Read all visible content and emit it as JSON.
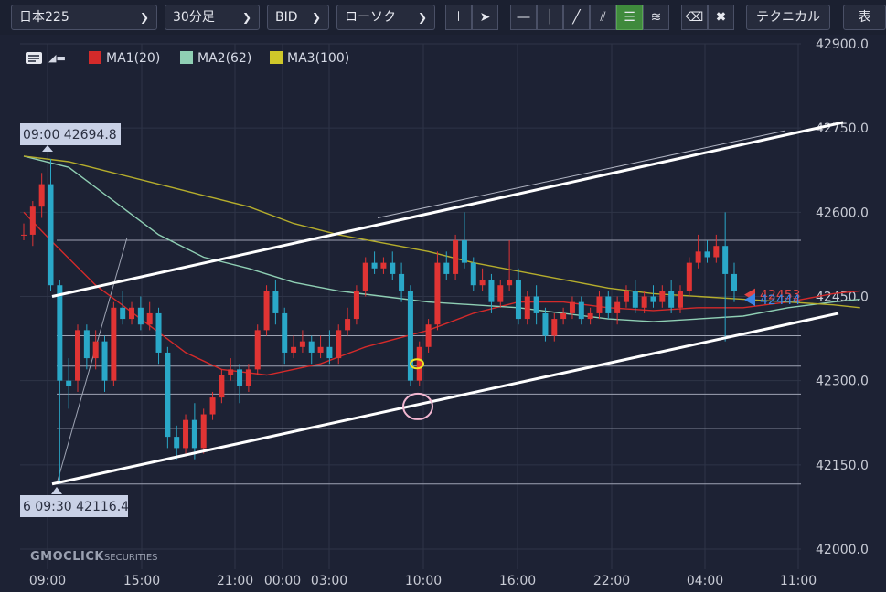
{
  "toolbar": {
    "symbol": "日本225",
    "interval": "30分足",
    "price_type": "BID",
    "chart_style": "ローソク",
    "technical_label": "テクニカル",
    "display_label": "表示",
    "tool_icons": [
      "crosshair-icon",
      "pointer-icon",
      "horizontal-line-icon",
      "vertical-line-icon",
      "trend-line-icon",
      "parallel-channel-icon",
      "fibonacci-retracement-icon",
      "fibonacci-fan-icon",
      "eraser-icon",
      "erase-all-icon"
    ]
  },
  "legend": {
    "ma1": "MA1(20)",
    "ma2": "MA2(62)",
    "ma3": "MA3(100)"
  },
  "logo": {
    "main": "GMOCLICK",
    "sub": "SECURITIES"
  },
  "annotations": {
    "high_label": "09:00 42694.8",
    "low_label": "6 09:30 42116.4"
  },
  "chart_data": {
    "type": "candlestick",
    "ylim": [
      42000,
      42900
    ],
    "y_ticks": [
      "42000.0",
      "42150.0",
      "42300.0",
      "42450.0",
      "42600.0",
      "42750.0",
      "42900.0"
    ],
    "x_ticks": [
      "09:00",
      "15:00",
      "21:00",
      "00:00",
      "03:00",
      "10:00",
      "16:00",
      "22:00",
      "04:00",
      "11:00"
    ],
    "bullish_color": "#e03434",
    "bearish_color": "#2aa8c8",
    "series": [
      {
        "name": "MA1(20)",
        "color": "#d42a2a",
        "points": [
          [
            0,
            42600
          ],
          [
            3,
            42550
          ],
          [
            8,
            42470
          ],
          [
            13,
            42410
          ],
          [
            18,
            42350
          ],
          [
            22,
            42320
          ],
          [
            27,
            42310
          ],
          [
            33,
            42330
          ],
          [
            38,
            42360
          ],
          [
            45,
            42390
          ],
          [
            50,
            42420
          ],
          [
            55,
            42440
          ],
          [
            60,
            42440
          ],
          [
            65,
            42430
          ],
          [
            70,
            42425
          ],
          [
            75,
            42430
          ],
          [
            80,
            42430
          ],
          [
            85,
            42440
          ],
          [
            90,
            42455
          ],
          [
            93,
            42460
          ]
        ]
      },
      {
        "name": "MA2(62)",
        "color": "#8fcfb4",
        "points": [
          [
            0,
            42700
          ],
          [
            5,
            42680
          ],
          [
            10,
            42620
          ],
          [
            15,
            42560
          ],
          [
            20,
            42520
          ],
          [
            25,
            42500
          ],
          [
            30,
            42475
          ],
          [
            35,
            42460
          ],
          [
            40,
            42450
          ],
          [
            45,
            42440
          ],
          [
            50,
            42435
          ],
          [
            55,
            42430
          ],
          [
            60,
            42420
          ],
          [
            65,
            42410
          ],
          [
            70,
            42405
          ],
          [
            75,
            42410
          ],
          [
            80,
            42415
          ],
          [
            85,
            42430
          ],
          [
            90,
            42440
          ],
          [
            93,
            42445
          ]
        ]
      },
      {
        "name": "MA3(100)",
        "color": "#b5ad2c",
        "points": [
          [
            0,
            42700
          ],
          [
            5,
            42690
          ],
          [
            10,
            42670
          ],
          [
            15,
            42650
          ],
          [
            20,
            42630
          ],
          [
            25,
            42610
          ],
          [
            30,
            42580
          ],
          [
            35,
            42560
          ],
          [
            40,
            42545
          ],
          [
            45,
            42530
          ],
          [
            50,
            42510
          ],
          [
            55,
            42495
          ],
          [
            60,
            42480
          ],
          [
            65,
            42465
          ],
          [
            70,
            42455
          ],
          [
            75,
            42450
          ],
          [
            80,
            42445
          ],
          [
            85,
            42440
          ],
          [
            90,
            42435
          ],
          [
            93,
            42430
          ]
        ]
      }
    ],
    "candles": [
      [
        0,
        42560,
        42580,
        42560,
        42550
      ],
      [
        1,
        42560,
        42620,
        42610,
        42540
      ],
      [
        2,
        42610,
        42670,
        42650,
        42590
      ],
      [
        3,
        42650,
        42695,
        42470,
        42460
      ],
      [
        4,
        42470,
        42480,
        42300,
        42116
      ],
      [
        5,
        42300,
        42340,
        42290,
        42250
      ],
      [
        6,
        42300,
        42400,
        42390,
        42280
      ],
      [
        7,
        42390,
        42400,
        42340,
        42320
      ],
      [
        8,
        42340,
        42390,
        42370,
        42320
      ],
      [
        9,
        42370,
        42380,
        42300,
        42280
      ],
      [
        10,
        42300,
        42440,
        42430,
        42290
      ],
      [
        11,
        42430,
        42460,
        42410,
        42400
      ],
      [
        12,
        42410,
        42440,
        42430,
        42400
      ],
      [
        13,
        42430,
        42450,
        42400,
        42390
      ],
      [
        14,
        42400,
        42440,
        42420,
        42390
      ],
      [
        15,
        42420,
        42430,
        42350,
        42330
      ],
      [
        16,
        42350,
        42360,
        42200,
        42180
      ],
      [
        17,
        42200,
        42220,
        42180,
        42160
      ],
      [
        18,
        42180,
        42240,
        42230,
        42170
      ],
      [
        19,
        42230,
        42260,
        42180,
        42160
      ],
      [
        20,
        42180,
        42250,
        42240,
        42170
      ],
      [
        21,
        42240,
        42280,
        42270,
        42230
      ],
      [
        22,
        42270,
        42320,
        42310,
        42260
      ],
      [
        23,
        42310,
        42340,
        42320,
        42300
      ],
      [
        24,
        42320,
        42330,
        42290,
        42260
      ],
      [
        25,
        42290,
        42330,
        42320,
        42280
      ],
      [
        26,
        42320,
        42400,
        42390,
        42310
      ],
      [
        27,
        42390,
        42470,
        42460,
        42380
      ],
      [
        28,
        42460,
        42480,
        42420,
        42400
      ],
      [
        29,
        42420,
        42430,
        42350,
        42330
      ],
      [
        30,
        42350,
        42380,
        42360,
        42340
      ],
      [
        31,
        42360,
        42390,
        42370,
        42350
      ],
      [
        32,
        42370,
        42380,
        42350,
        42330
      ],
      [
        33,
        42350,
        42380,
        42360,
        42340
      ],
      [
        34,
        42360,
        42390,
        42340,
        42330
      ],
      [
        35,
        42340,
        42400,
        42390,
        42330
      ],
      [
        36,
        42390,
        42430,
        42410,
        42380
      ],
      [
        37,
        42410,
        42470,
        42460,
        42400
      ],
      [
        38,
        42460,
        42520,
        42510,
        42450
      ],
      [
        39,
        42510,
        42530,
        42500,
        42490
      ],
      [
        40,
        42500,
        42520,
        42510,
        42490
      ],
      [
        41,
        42510,
        42530,
        42490,
        42480
      ],
      [
        42,
        42490,
        42510,
        42460,
        42440
      ],
      [
        43,
        42460,
        42470,
        42300,
        42290
      ],
      [
        44,
        42300,
        42370,
        42360,
        42290
      ],
      [
        45,
        42360,
        42410,
        42400,
        42350
      ],
      [
        46,
        42400,
        42530,
        42510,
        42390
      ],
      [
        47,
        42510,
        42530,
        42490,
        42480
      ],
      [
        48,
        42490,
        42560,
        42550,
        42480
      ],
      [
        49,
        42550,
        42600,
        42510,
        42500
      ],
      [
        50,
        42510,
        42520,
        42470,
        42460
      ],
      [
        51,
        42470,
        42500,
        42480,
        42460
      ],
      [
        52,
        42480,
        42490,
        42440,
        42420
      ],
      [
        53,
        42440,
        42480,
        42470,
        42430
      ],
      [
        54,
        42470,
        42550,
        42480,
        42460
      ],
      [
        55,
        42480,
        42500,
        42410,
        42400
      ],
      [
        56,
        42410,
        42460,
        42450,
        42400
      ],
      [
        57,
        42450,
        42470,
        42420,
        42400
      ],
      [
        58,
        42420,
        42430,
        42380,
        42370
      ],
      [
        59,
        42380,
        42420,
        42410,
        42370
      ],
      [
        60,
        42410,
        42430,
        42420,
        42400
      ],
      [
        61,
        42420,
        42450,
        42440,
        42410
      ],
      [
        62,
        42440,
        42450,
        42410,
        42400
      ],
      [
        63,
        42410,
        42430,
        42420,
        42400
      ],
      [
        64,
        42420,
        42460,
        42450,
        42410
      ],
      [
        65,
        42450,
        42460,
        42420,
        42410
      ],
      [
        66,
        42420,
        42450,
        42440,
        42400
      ],
      [
        67,
        42440,
        42470,
        42460,
        42430
      ],
      [
        68,
        42460,
        42480,
        42430,
        42420
      ],
      [
        69,
        42430,
        42460,
        42450,
        42420
      ],
      [
        70,
        42450,
        42470,
        42440,
        42430
      ],
      [
        71,
        42440,
        42470,
        42460,
        42430
      ],
      [
        72,
        42460,
        42480,
        42430,
        42420
      ],
      [
        73,
        42430,
        42470,
        42460,
        42420
      ],
      [
        74,
        42460,
        42520,
        42510,
        42450
      ],
      [
        75,
        42510,
        42560,
        42530,
        42500
      ],
      [
        76,
        42530,
        42550,
        42520,
        42510
      ],
      [
        77,
        42520,
        42560,
        42540,
        42510
      ],
      [
        78,
        42540,
        42600,
        42490,
        42370
      ],
      [
        79,
        42490,
        42510,
        42460,
        42440
      ]
    ],
    "price_badges": [
      {
        "label": "42453",
        "value": 42453,
        "color": "#e04444"
      },
      {
        "label": "42444",
        "value": 42444,
        "color": "#3b86e6"
      }
    ],
    "grid": true
  }
}
